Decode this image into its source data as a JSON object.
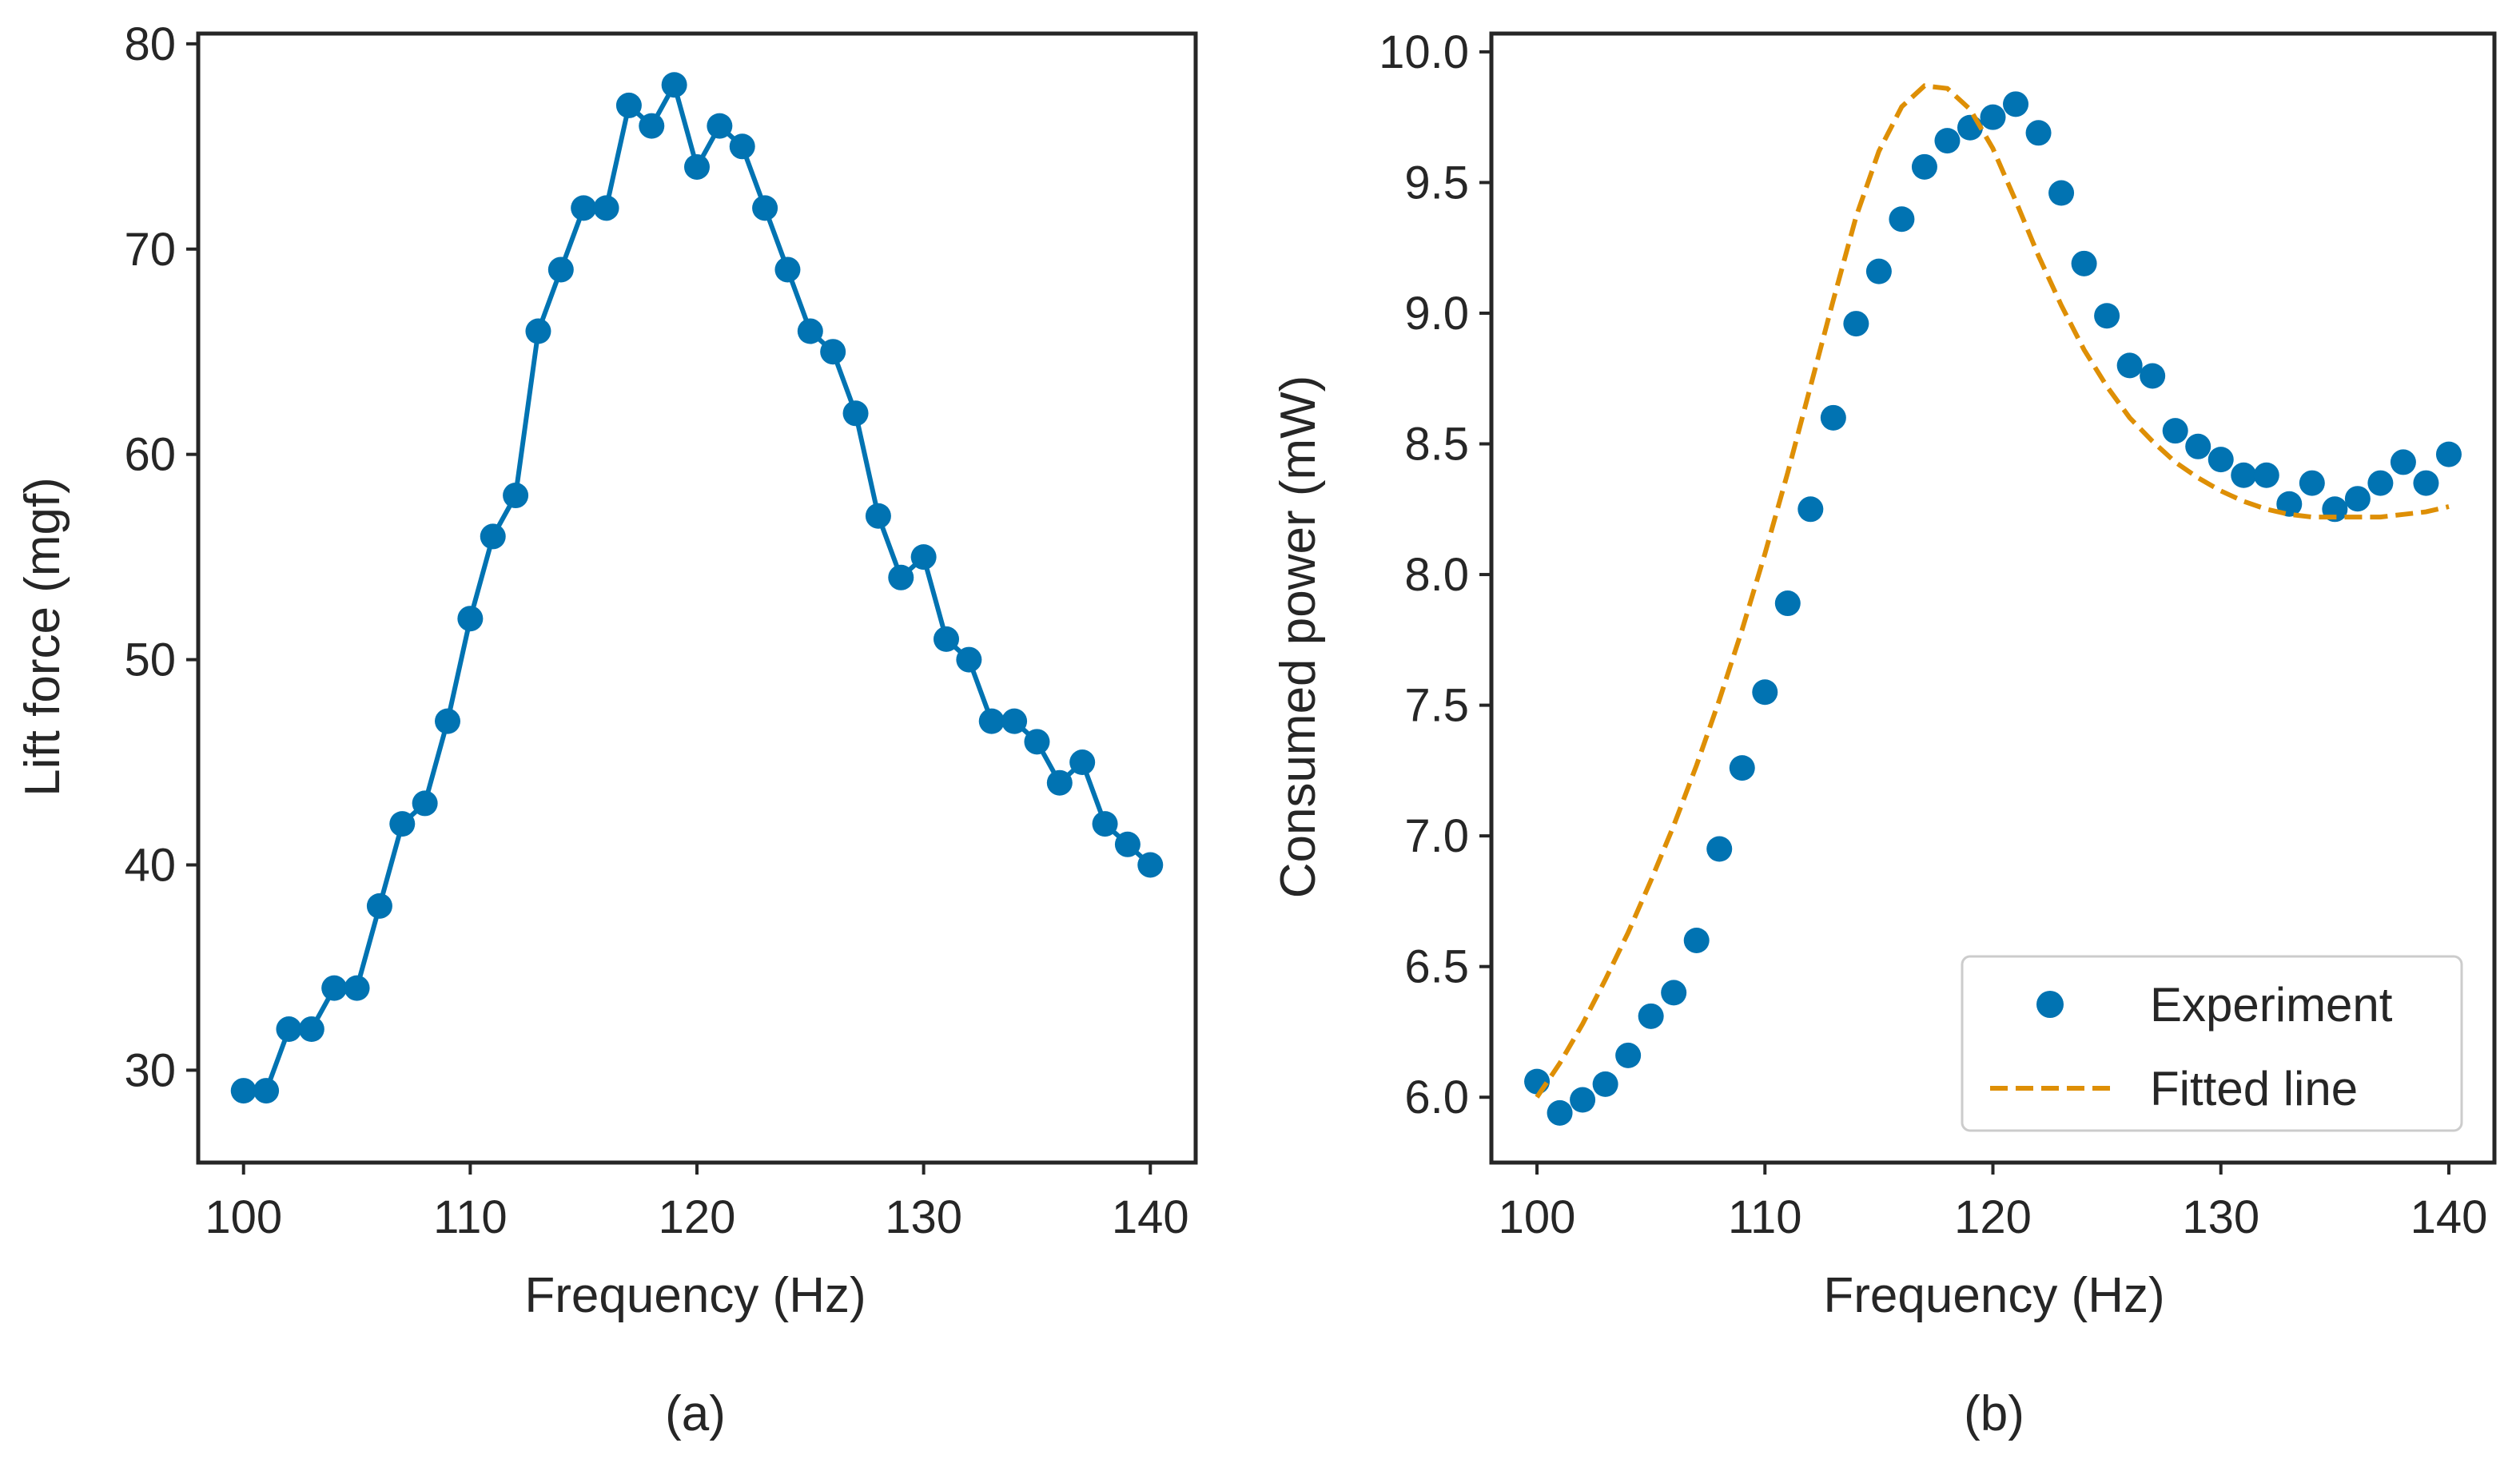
{
  "chart_data": [
    {
      "type": "line",
      "panel_label": "(a)",
      "xlabel": "Frequency (Hz)",
      "ylabel": "Lift force (mgf)",
      "xlim": [
        98,
        142
      ],
      "ylim": [
        25.5,
        80.5
      ],
      "xticks": [
        100,
        110,
        120,
        130,
        140
      ],
      "xtick_labels": [
        "100",
        "110",
        "120",
        "130",
        "140"
      ],
      "yticks": [
        30,
        40,
        50,
        60,
        70,
        80
      ],
      "ytick_labels": [
        "30",
        "40",
        "50",
        "60",
        "70",
        "80"
      ],
      "grid": false,
      "series": [
        {
          "name": "Lift force",
          "color": "#0173b2",
          "x": [
            100,
            101,
            102,
            103,
            104,
            105,
            106,
            107,
            108,
            109,
            110,
            111,
            112,
            113,
            114,
            115,
            116,
            117,
            118,
            119,
            120,
            121,
            122,
            123,
            124,
            125,
            126,
            127,
            128,
            129,
            130,
            131,
            132,
            133,
            134,
            135,
            136,
            137,
            138,
            139,
            140
          ],
          "y": [
            29,
            29,
            32,
            32,
            34,
            34,
            38,
            42,
            43,
            47,
            52,
            56,
            58,
            66,
            69,
            72,
            72,
            77,
            76,
            78,
            74,
            76,
            75,
            72,
            69,
            66,
            65,
            62,
            57,
            54,
            55,
            51,
            50,
            47,
            47,
            46,
            44,
            45,
            42,
            41,
            40
          ]
        }
      ]
    },
    {
      "type": "scatter",
      "panel_label": "(b)",
      "xlabel": "Frequency (Hz)",
      "ylabel": "Consumed power (mW)",
      "xlim": [
        98,
        142
      ],
      "ylim": [
        5.75,
        10.07
      ],
      "xticks": [
        100,
        110,
        120,
        130,
        140
      ],
      "xtick_labels": [
        "100",
        "110",
        "120",
        "130",
        "140"
      ],
      "yticks": [
        6.0,
        6.5,
        7.0,
        7.5,
        8.0,
        8.5,
        9.0,
        9.5,
        10.0
      ],
      "ytick_labels": [
        "6.0",
        "6.5",
        "7.0",
        "7.5",
        "8.0",
        "8.5",
        "9.0",
        "9.5",
        "10.0"
      ],
      "grid": false,
      "legend_position": "lower-right",
      "series": [
        {
          "name": "Experiment",
          "style": "markers",
          "color": "#0173b2",
          "x": [
            100,
            101,
            102,
            103,
            104,
            105,
            106,
            107,
            108,
            109,
            110,
            111,
            112,
            113,
            114,
            115,
            116,
            117,
            118,
            119,
            120,
            121,
            122,
            123,
            124,
            125,
            126,
            127,
            128,
            129,
            130,
            131,
            132,
            133,
            134,
            135,
            136,
            137,
            138,
            139,
            140
          ],
          "y": [
            6.06,
            5.94,
            5.99,
            6.05,
            6.16,
            6.31,
            6.4,
            6.6,
            6.95,
            7.26,
            7.55,
            7.89,
            8.25,
            8.6,
            8.96,
            9.16,
            9.36,
            9.56,
            9.66,
            9.71,
            9.75,
            9.8,
            9.69,
            9.46,
            9.19,
            8.99,
            8.8,
            8.76,
            8.55,
            8.49,
            8.44,
            8.38,
            8.38,
            8.27,
            8.35,
            8.25,
            8.29,
            8.35,
            8.43,
            8.35,
            8.46
          ]
        },
        {
          "name": "Fitted line",
          "style": "dashed",
          "color": "#de8f05",
          "x": [
            100,
            101,
            102,
            103,
            104,
            105,
            106,
            107,
            108,
            109,
            110,
            111,
            112,
            113,
            114,
            115,
            116,
            117,
            118,
            119,
            120,
            121,
            122,
            123,
            124,
            125,
            126,
            127,
            128,
            129,
            130,
            131,
            132,
            133,
            134,
            135,
            136,
            137,
            138,
            139,
            140
          ],
          "y": [
            6.0,
            6.13,
            6.28,
            6.45,
            6.63,
            6.83,
            7.04,
            7.27,
            7.52,
            7.79,
            8.08,
            8.39,
            8.72,
            9.05,
            9.37,
            9.62,
            9.79,
            9.87,
            9.86,
            9.78,
            9.63,
            9.43,
            9.22,
            9.03,
            8.86,
            8.72,
            8.6,
            8.51,
            8.43,
            8.37,
            8.32,
            8.28,
            8.25,
            8.23,
            8.22,
            8.22,
            8.22,
            8.22,
            8.23,
            8.24,
            8.26
          ]
        }
      ]
    }
  ]
}
